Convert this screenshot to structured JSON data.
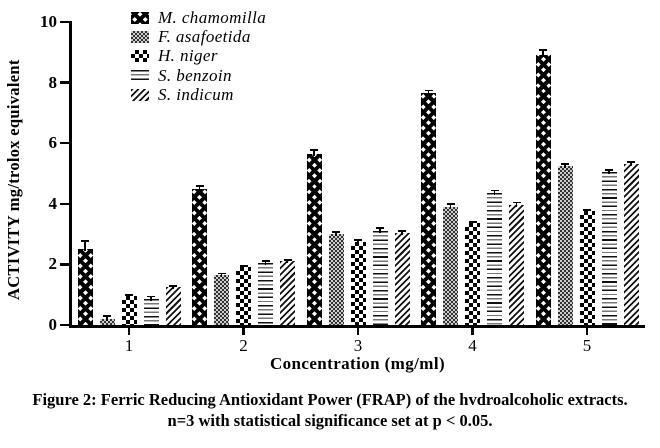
{
  "figure": {
    "caption_line1": "Figure 2: Ferric Reducing Antioxidant Power (FRAP) of the hvdroalcoholic extracts.",
    "caption_line2": "n=3 with statistical significance set at p < 0.05."
  },
  "chart_data": {
    "type": "bar",
    "title": "",
    "xlabel": "Concentration (mg/ml)",
    "ylabel": "ACTIVITY mg/trolox equivalent",
    "ylim": [
      0,
      10
    ],
    "yticks": [
      0,
      2,
      4,
      6,
      8,
      10
    ],
    "categories": [
      "1",
      "2",
      "3",
      "4",
      "5"
    ],
    "grid": false,
    "legend_position": "inside-top-left",
    "error_bars": true,
    "colors": {
      "ink": "#000000",
      "background": "#ffffff"
    },
    "series": [
      {
        "name": "M. chamomilla",
        "pattern": "lattice",
        "values": [
          2.5,
          4.5,
          5.65,
          7.65,
          8.9
        ],
        "errors": [
          0.3,
          0.12,
          0.15,
          0.12,
          0.2
        ]
      },
      {
        "name": "F. asafoetida",
        "pattern": "fine-check",
        "values": [
          0.2,
          1.65,
          3.0,
          3.9,
          5.25
        ],
        "errors": [
          0.12,
          0.08,
          0.1,
          0.12,
          0.1
        ]
      },
      {
        "name": "H. niger",
        "pattern": "checkerboard",
        "values": [
          0.95,
          1.9,
          2.75,
          3.35,
          3.75
        ],
        "errors": [
          0.06,
          0.07,
          0.08,
          0.08,
          0.08
        ]
      },
      {
        "name": "S. benzoin",
        "pattern": "horizontal-lines",
        "values": [
          0.85,
          2.05,
          3.1,
          4.35,
          5.05
        ],
        "errors": [
          0.12,
          0.08,
          0.12,
          0.12,
          0.1
        ]
      },
      {
        "name": "S. indicum",
        "pattern": "diagonal-hatch",
        "values": [
          1.25,
          2.1,
          3.05,
          3.95,
          5.3
        ],
        "errors": [
          0.07,
          0.08,
          0.08,
          0.12,
          0.12
        ]
      }
    ]
  }
}
